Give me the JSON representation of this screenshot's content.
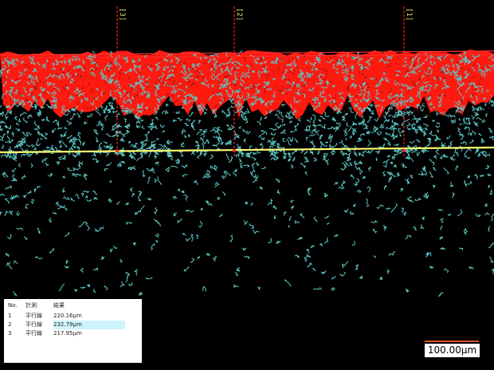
{
  "measure_lines": [
    {
      "label": "[3]"
    },
    {
      "label": "[2]"
    },
    {
      "label": "[1]"
    }
  ],
  "table": {
    "headers": [
      "No.",
      "計測",
      "結果"
    ],
    "rows": [
      [
        "1",
        "平行線",
        "220.16μm"
      ],
      [
        "2",
        "平行線",
        "232.79μm"
      ],
      [
        "3",
        "平行線",
        "217.95μm"
      ]
    ]
  },
  "scale_bar": "100.00μm"
}
